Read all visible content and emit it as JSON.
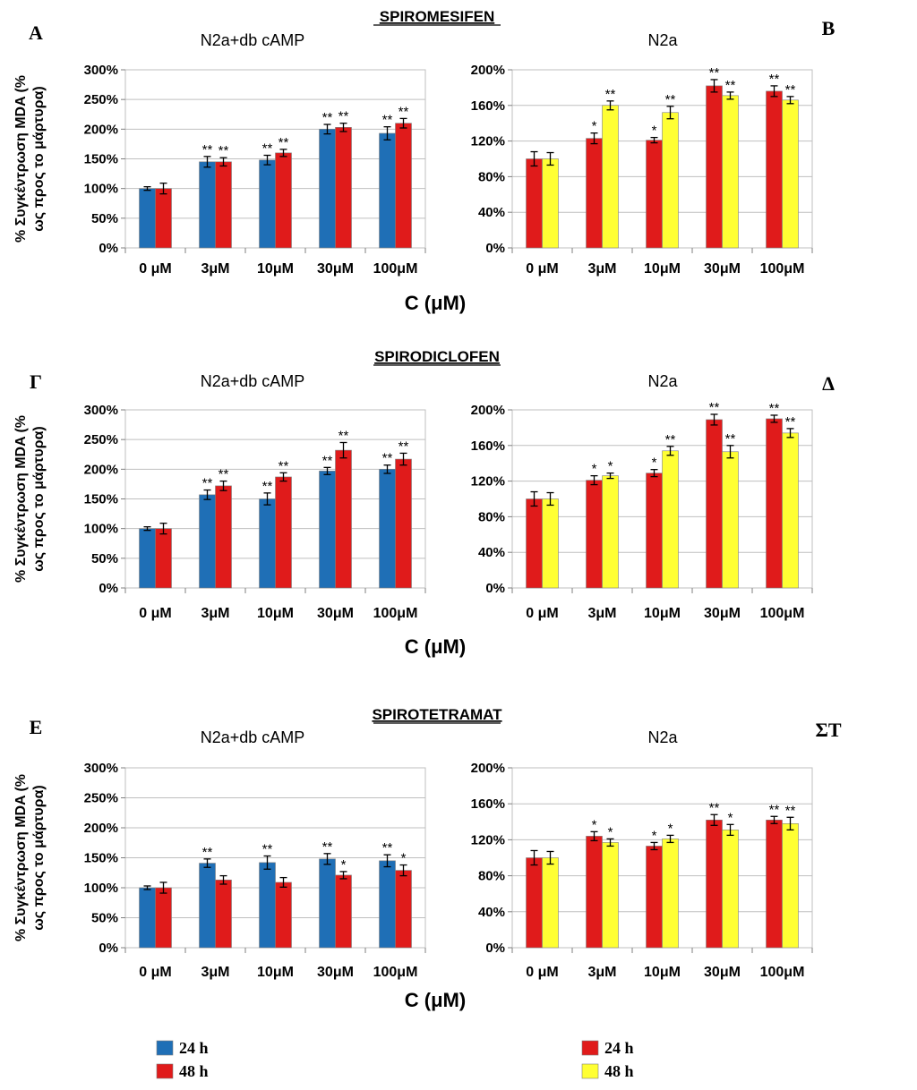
{
  "sections": [
    {
      "title": "SPIROMESIFEN",
      "xaxis_title": "C (μM)",
      "left_label": "A",
      "right_label": "B"
    },
    {
      "title": "SPIRODICLOFEN",
      "xaxis_title": "C (μM)",
      "left_label": "Γ",
      "right_label": "Δ"
    },
    {
      "title": "SPIROTETRAMAT",
      "xaxis_title": "C (μM)",
      "left_label": "E",
      "right_label": "ΣT"
    }
  ],
  "ylabel_line1": "% Συγκέντρωση MDA (%",
  "ylabel_line2": "ως προς το μάρτυρα)",
  "legend_left": [
    {
      "label": "24 h",
      "color": "#1f6fb6"
    },
    {
      "label": "48 h",
      "color": "#e01b1b"
    }
  ],
  "legend_right": [
    {
      "label": "24 h",
      "color": "#e01b1b"
    },
    {
      "label": "48 h",
      "color": "#ffff33"
    }
  ],
  "chart_data": [
    {
      "panel": "A",
      "type": "bar",
      "title": "N2a+db cAMP",
      "categories": [
        "0 μM",
        "3μM",
        "10μM",
        "30μM",
        "100μM"
      ],
      "ylim": [
        0,
        300
      ],
      "yticks": [
        0,
        50,
        100,
        150,
        200,
        250,
        300
      ],
      "tick_suffix": "%",
      "series": [
        {
          "name": "24 h",
          "color": "#1f6fb6",
          "values": [
            100,
            145,
            148,
            200,
            193
          ],
          "errors": [
            3,
            9,
            8,
            8,
            11
          ],
          "sig": [
            "",
            "**",
            "**",
            "**",
            "**"
          ]
        },
        {
          "name": "48 h",
          "color": "#e01b1b",
          "values": [
            100,
            145,
            160,
            203,
            210
          ],
          "errors": [
            9,
            7,
            6,
            7,
            8
          ],
          "sig": [
            "",
            "**",
            "**",
            "**",
            "**"
          ]
        }
      ]
    },
    {
      "panel": "B",
      "type": "bar",
      "title": "N2a",
      "categories": [
        "0 μM",
        "3μM",
        "10μM",
        "30μM",
        "100μM"
      ],
      "ylim": [
        0,
        200
      ],
      "yticks": [
        0,
        40,
        80,
        120,
        160,
        200
      ],
      "tick_suffix": "%",
      "series": [
        {
          "name": "24 h",
          "color": "#e01b1b",
          "values": [
            100,
            123,
            121,
            182,
            176
          ],
          "errors": [
            8,
            6,
            3,
            7,
            6
          ],
          "sig": [
            "",
            "*",
            "*",
            "**",
            "**"
          ]
        },
        {
          "name": "48 h",
          "color": "#ffff33",
          "values": [
            100,
            160,
            152,
            171,
            166
          ],
          "errors": [
            7,
            5,
            7,
            4,
            4
          ],
          "sig": [
            "",
            "**",
            "**",
            "**",
            "**"
          ]
        }
      ]
    },
    {
      "panel": "Γ",
      "type": "bar",
      "title": "N2a+db cAMP",
      "categories": [
        "0 μM",
        "3μM",
        "10μM",
        "30μM",
        "100μM"
      ],
      "ylim": [
        0,
        300
      ],
      "yticks": [
        0,
        50,
        100,
        150,
        200,
        250,
        300
      ],
      "tick_suffix": "%",
      "series": [
        {
          "name": "24 h",
          "color": "#1f6fb6",
          "values": [
            100,
            157,
            150,
            197,
            200
          ],
          "errors": [
            3,
            8,
            10,
            6,
            7
          ],
          "sig": [
            "",
            "**",
            "**",
            "**",
            "**"
          ]
        },
        {
          "name": "48 h",
          "color": "#e01b1b",
          "values": [
            100,
            172,
            187,
            232,
            217
          ],
          "errors": [
            9,
            8,
            7,
            13,
            10
          ],
          "sig": [
            "",
            "**",
            "**",
            "**",
            "**"
          ]
        }
      ]
    },
    {
      "panel": "Δ",
      "type": "bar",
      "title": "N2a",
      "categories": [
        "0 μM",
        "3μM",
        "10μM",
        "30μM",
        "100μM"
      ],
      "ylim": [
        0,
        200
      ],
      "yticks": [
        0,
        40,
        80,
        120,
        160,
        200
      ],
      "tick_suffix": "%",
      "series": [
        {
          "name": "24 h",
          "color": "#e01b1b",
          "values": [
            100,
            121,
            129,
            189,
            190
          ],
          "errors": [
            8,
            5,
            4,
            6,
            4
          ],
          "sig": [
            "",
            "*",
            "*",
            "**",
            "**"
          ]
        },
        {
          "name": "48 h",
          "color": "#ffff33",
          "values": [
            100,
            126,
            154,
            153,
            174
          ],
          "errors": [
            7,
            3,
            5,
            7,
            5
          ],
          "sig": [
            "",
            "*",
            "**",
            "**",
            "**"
          ]
        }
      ]
    },
    {
      "panel": "E",
      "type": "bar",
      "title": "N2a+db cAMP",
      "categories": [
        "0 μM",
        "3μM",
        "10μM",
        "30μM",
        "100μM"
      ],
      "ylim": [
        0,
        300
      ],
      "yticks": [
        0,
        50,
        100,
        150,
        200,
        250,
        300
      ],
      "tick_suffix": "%",
      "series": [
        {
          "name": "24 h",
          "color": "#1f6fb6",
          "values": [
            100,
            141,
            142,
            148,
            145
          ],
          "errors": [
            3,
            7,
            11,
            9,
            10
          ],
          "sig": [
            "",
            "**",
            "**",
            "**",
            "**"
          ]
        },
        {
          "name": "48 h",
          "color": "#e01b1b",
          "values": [
            100,
            113,
            109,
            121,
            129
          ],
          "errors": [
            9,
            7,
            8,
            6,
            9
          ],
          "sig": [
            "",
            "",
            "",
            "*",
            "*"
          ]
        }
      ]
    },
    {
      "panel": "ΣT",
      "type": "bar",
      "title": "N2a",
      "categories": [
        "0 μM",
        "3μM",
        "10μM",
        "30μM",
        "100μM"
      ],
      "ylim": [
        0,
        200
      ],
      "yticks": [
        0,
        40,
        80,
        120,
        160,
        200
      ],
      "tick_suffix": "%",
      "series": [
        {
          "name": "24 h",
          "color": "#e01b1b",
          "values": [
            100,
            124,
            113,
            142,
            142
          ],
          "errors": [
            8,
            5,
            4,
            6,
            4
          ],
          "sig": [
            "",
            "*",
            "*",
            "**",
            "**"
          ]
        },
        {
          "name": "48 h",
          "color": "#ffff33",
          "values": [
            100,
            117,
            121,
            131,
            138
          ],
          "errors": [
            7,
            4,
            4,
            6,
            7
          ],
          "sig": [
            "",
            "*",
            "*",
            "*",
            "**"
          ]
        }
      ]
    }
  ]
}
